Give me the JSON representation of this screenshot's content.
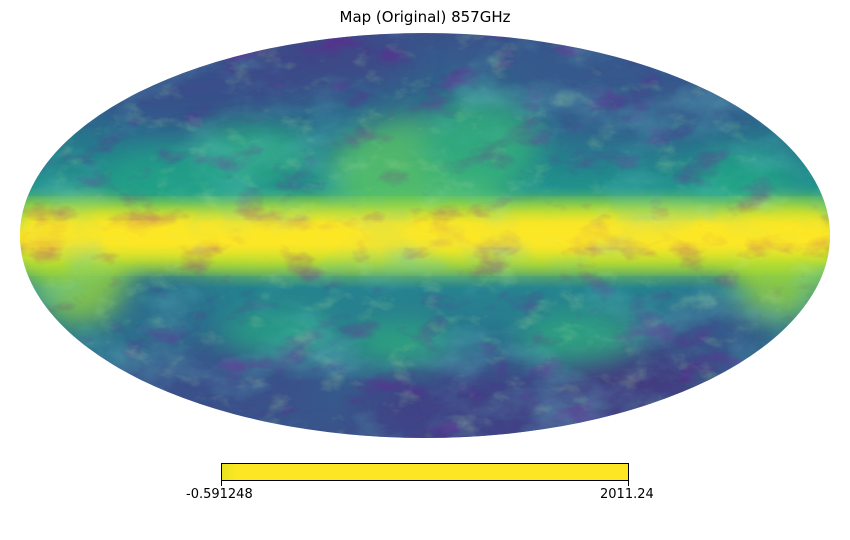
{
  "title": "Map (Original) 857GHz",
  "projection": "mollweide",
  "colormap": {
    "name": "viridis",
    "colors": [
      "#440154",
      "#3b528b",
      "#21908d",
      "#5dc863",
      "#fde725"
    ]
  },
  "colorbar": {
    "min_label": "-0.591248",
    "max_label": "2011.24"
  }
}
